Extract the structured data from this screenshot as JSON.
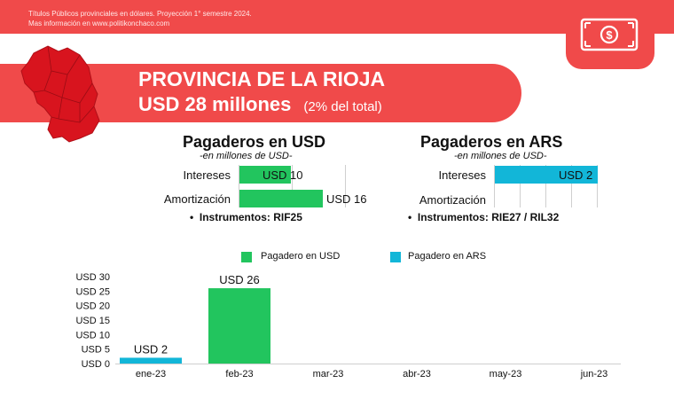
{
  "header": {
    "line1": "Títulos Públicos provinciales en dólares. Proyección 1° semestre 2024.",
    "line2": "Mas información en www.politikonchaco.com"
  },
  "banner": {
    "title": "PROVINCIA DE LA RIOJA",
    "amount": "USD 28 millones",
    "share": "(2% del total)"
  },
  "icons": {
    "money": "dollar-bill-icon",
    "map": "la-rioja-map-icon"
  },
  "colors": {
    "red": "#f04a4a",
    "usd": "#22c55e",
    "ars": "#12b6d8"
  },
  "usd_panel": {
    "title": "Pagaderos en USD",
    "subtitle": "-en millones de USD-",
    "categories": [
      "Intereses",
      "Amortización"
    ],
    "values": [
      10,
      16
    ],
    "labels": [
      "USD 10",
      "USD 16"
    ],
    "instruments": "Instrumentos: RIF25"
  },
  "ars_panel": {
    "title": "Pagaderos en ARS",
    "subtitle": "-en millones de USD-",
    "categories": [
      "Intereses",
      "Amortización"
    ],
    "values": [
      2,
      0
    ],
    "labels": [
      "USD 2",
      ""
    ],
    "instruments": "Instrumentos: RIE27 / RIL32"
  },
  "legend": {
    "usd": "Pagadero en USD",
    "ars": "Pagadero en ARS"
  },
  "chart_data": [
    {
      "type": "bar",
      "categories": [
        "Intereses",
        "Amortización"
      ],
      "series": [
        {
          "name": "Pagaderos en USD",
          "values": [
            10,
            16
          ]
        }
      ],
      "title": "Pagaderos en USD",
      "subtitle": "-en millones de USD-",
      "data_labels": [
        "USD 10",
        "USD 16"
      ]
    },
    {
      "type": "bar",
      "categories": [
        "Intereses",
        "Amortización"
      ],
      "series": [
        {
          "name": "Pagaderos en ARS",
          "values": [
            2,
            0
          ]
        }
      ],
      "title": "Pagaderos en ARS",
      "subtitle": "-en millones de USD-",
      "data_labels": [
        "USD 2",
        ""
      ]
    },
    {
      "type": "bar",
      "categories": [
        "ene-23",
        "feb-23",
        "mar-23",
        "abr-23",
        "may-23",
        "jun-23"
      ],
      "series": [
        {
          "name": "Pagadero en USD",
          "values": [
            0,
            26,
            0,
            0,
            0,
            0
          ]
        },
        {
          "name": "Pagadero en ARS",
          "values": [
            2,
            0,
            0,
            0,
            0,
            0
          ]
        }
      ],
      "ylim": [
        0,
        30
      ],
      "yticks": [
        "USD 0",
        "USD 5",
        "USD 10",
        "USD 15",
        "USD 20",
        "USD 25",
        "USD 30"
      ],
      "data_labels": [
        "USD 2",
        "USD 26"
      ],
      "legend": "top",
      "grid": false
    }
  ]
}
